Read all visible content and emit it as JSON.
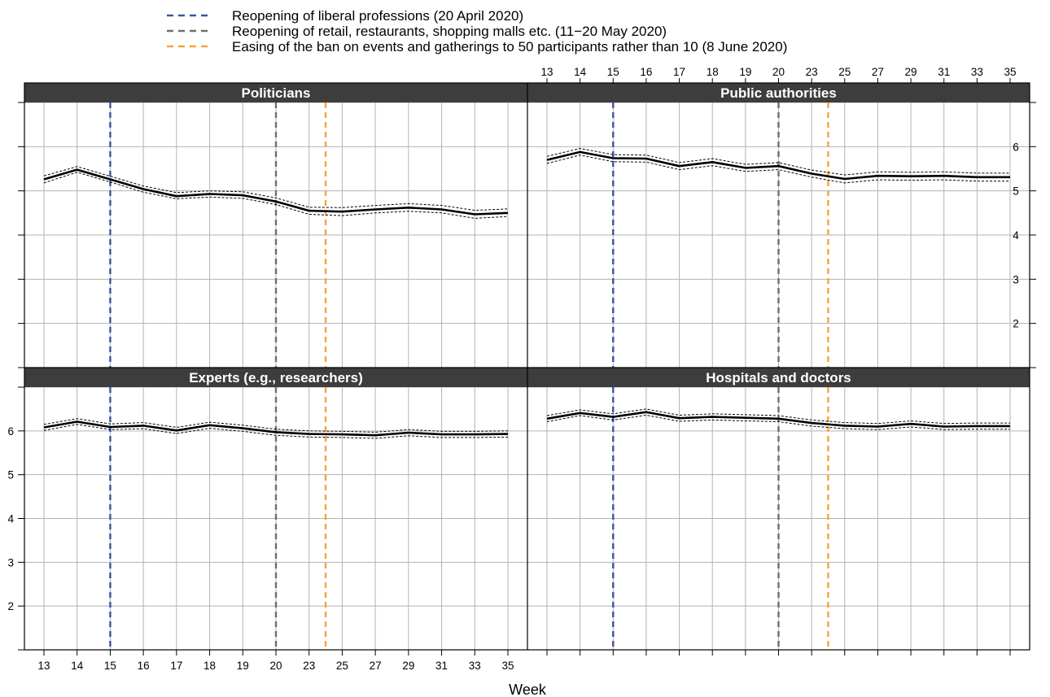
{
  "legend": {
    "items": [
      {
        "label": "Reopening of liberal professions (20 April 2020)",
        "color": "#3a55a4"
      },
      {
        "label": "Reopening of retail, restaurants, shopping malls etc. (11−20 May 2020)",
        "color": "#6e6e6e"
      },
      {
        "label": "Easing of the ban on events and gatherings to 50 participants rather than 10 (8 June 2020)",
        "color": "#f5a33a"
      }
    ]
  },
  "chart_data": {
    "type": "line",
    "xlabel": "Week",
    "categories": [
      "13",
      "14",
      "15",
      "16",
      "17",
      "18",
      "19",
      "20",
      "23",
      "25",
      "27",
      "29",
      "31",
      "33",
      "35"
    ],
    "ylim": [
      1,
      7
    ],
    "yticks": [
      2,
      3,
      4,
      5,
      6
    ],
    "grid": true,
    "legend_position": "top",
    "event_lines": [
      {
        "category": "15",
        "color": "#3a55a4"
      },
      {
        "category": "20",
        "color": "#6e6e6e"
      },
      {
        "category": "24",
        "color": "#f5a33a"
      }
    ],
    "panels": [
      {
        "title": "Politicians",
        "values": [
          5.26,
          5.48,
          5.26,
          5.04,
          4.88,
          4.93,
          4.9,
          4.76,
          4.55,
          4.53,
          4.58,
          4.62,
          4.58,
          4.47,
          4.5
        ],
        "lower": [
          5.18,
          5.42,
          5.2,
          4.97,
          4.82,
          4.86,
          4.83,
          4.69,
          4.47,
          4.44,
          4.5,
          4.54,
          4.5,
          4.38,
          4.42
        ],
        "upper": [
          5.34,
          5.55,
          5.33,
          5.11,
          4.96,
          5.0,
          4.98,
          4.84,
          4.63,
          4.62,
          4.67,
          4.71,
          4.67,
          4.56,
          4.59
        ]
      },
      {
        "title": "Public authorities",
        "values": [
          5.7,
          5.88,
          5.74,
          5.73,
          5.56,
          5.65,
          5.52,
          5.56,
          5.39,
          5.27,
          5.34,
          5.33,
          5.34,
          5.31,
          5.31
        ],
        "lower": [
          5.62,
          5.81,
          5.66,
          5.65,
          5.48,
          5.57,
          5.44,
          5.48,
          5.31,
          5.18,
          5.25,
          5.24,
          5.25,
          5.22,
          5.22
        ],
        "upper": [
          5.78,
          5.96,
          5.82,
          5.81,
          5.64,
          5.73,
          5.6,
          5.64,
          5.47,
          5.36,
          5.43,
          5.42,
          5.43,
          5.4,
          5.4
        ]
      },
      {
        "title": "Experts (e.g., researchers)",
        "values": [
          6.08,
          6.21,
          6.09,
          6.12,
          6.01,
          6.13,
          6.06,
          5.97,
          5.93,
          5.92,
          5.9,
          5.96,
          5.92,
          5.92,
          5.93
        ],
        "lower": [
          6.01,
          6.15,
          6.03,
          6.05,
          5.94,
          6.06,
          5.99,
          5.9,
          5.86,
          5.85,
          5.83,
          5.89,
          5.85,
          5.85,
          5.86
        ],
        "upper": [
          6.15,
          6.28,
          6.16,
          6.19,
          6.08,
          6.2,
          6.13,
          6.04,
          6.0,
          5.99,
          5.97,
          6.03,
          5.99,
          5.99,
          6.0
        ]
      },
      {
        "title": "Hospitals and doctors",
        "values": [
          6.28,
          6.41,
          6.32,
          6.43,
          6.29,
          6.32,
          6.3,
          6.28,
          6.18,
          6.12,
          6.1,
          6.16,
          6.1,
          6.11,
          6.11
        ],
        "lower": [
          6.21,
          6.35,
          6.25,
          6.36,
          6.22,
          6.25,
          6.23,
          6.21,
          6.11,
          6.05,
          6.03,
          6.09,
          6.03,
          6.04,
          6.04
        ],
        "upper": [
          6.35,
          6.48,
          6.39,
          6.5,
          6.36,
          6.39,
          6.37,
          6.35,
          6.25,
          6.19,
          6.17,
          6.23,
          6.17,
          6.18,
          6.18
        ]
      }
    ]
  }
}
